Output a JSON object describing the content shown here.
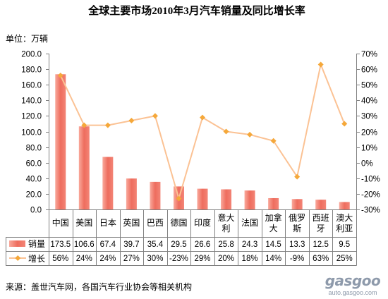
{
  "chart_data": {
    "type": "bar",
    "title": "全球主要市场2010年3月汽车销量及同比增长率",
    "ylabel": "单位：万辆",
    "categories": [
      "中国",
      "美国",
      "日本",
      "英国",
      "巴西",
      "德国",
      "印度",
      "意大利",
      "法国",
      "加拿大",
      "俄罗斯",
      "西班牙",
      "澳大利亚"
    ],
    "series": [
      {
        "name": "销量",
        "type": "bar",
        "axis": "left",
        "values": [
          173.5,
          106.6,
          67.4,
          39.7,
          35.4,
          29.5,
          26.6,
          25.8,
          24.3,
          14.5,
          13.3,
          12.5,
          9.5
        ]
      },
      {
        "name": "增长",
        "type": "line",
        "axis": "right",
        "values": [
          56,
          24,
          24,
          27,
          30,
          -23,
          29,
          20,
          18,
          14,
          -9,
          63,
          25
        ],
        "labels": [
          "56%",
          "24%",
          "24%",
          "27%",
          "30%",
          "-23%",
          "29%",
          "20%",
          "18%",
          "14%",
          "-9%",
          "63%",
          "25%"
        ]
      }
    ],
    "y_left": {
      "range": [
        0,
        200
      ],
      "ticks": [
        "0.0",
        "20.0",
        "40.0",
        "60.0",
        "80.0",
        "100.0",
        "120.0",
        "140.0",
        "160.0",
        "180.0",
        "200.0"
      ]
    },
    "y_right": {
      "range": [
        -30,
        70
      ],
      "ticks": [
        "-30%",
        "-20%",
        "-10%",
        "0%",
        "10%",
        "20%",
        "30%",
        "40%",
        "50%",
        "60%",
        "70%"
      ]
    },
    "grid": false,
    "legend": "bottom",
    "data_table": true
  },
  "source": "来源：盖世汽车网，各国汽车行业协会等相关机构",
  "logo": {
    "wordmark": "gasgoo",
    "url_text": "auto.gasgoo.com"
  },
  "colors": {
    "bar_light": "#F9A99C",
    "bar_mid": "#EE6D5E",
    "bar_edge": "#F38476",
    "line": "#FBC294",
    "marker": "#F5A83A",
    "axis": "#808080",
    "table_line": "#7F7F7F",
    "logo": "#8E9AAB"
  }
}
